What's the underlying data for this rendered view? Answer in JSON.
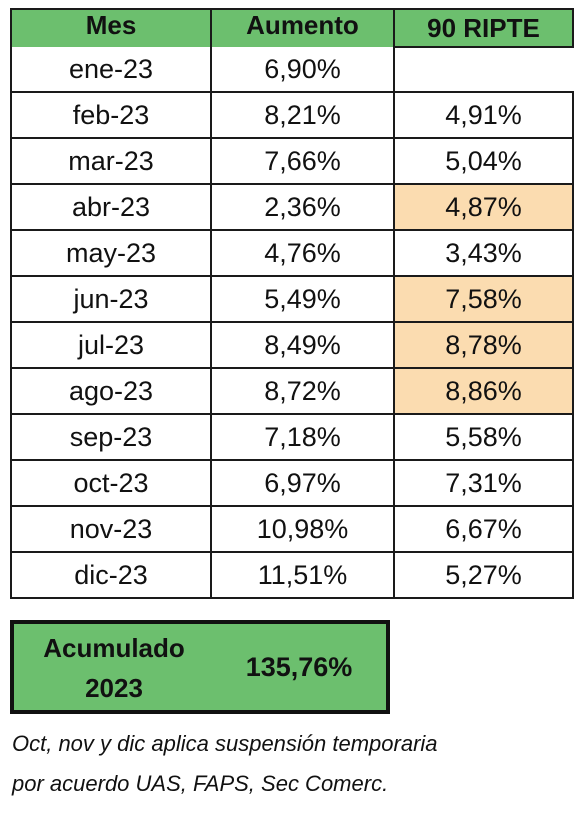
{
  "table": {
    "headers": {
      "mes": "Mes",
      "aumento": "Aumento",
      "ripte": "90 RIPTE"
    },
    "rows": [
      {
        "mes": "ene-23",
        "aumento": "6,90%",
        "ripte": "",
        "highlight": false
      },
      {
        "mes": "feb-23",
        "aumento": "8,21%",
        "ripte": "4,91%",
        "highlight": false
      },
      {
        "mes": "mar-23",
        "aumento": "7,66%",
        "ripte": "5,04%",
        "highlight": false
      },
      {
        "mes": "abr-23",
        "aumento": "2,36%",
        "ripte": "4,87%",
        "highlight": true
      },
      {
        "mes": "may-23",
        "aumento": "4,76%",
        "ripte": "3,43%",
        "highlight": false
      },
      {
        "mes": "jun-23",
        "aumento": "5,49%",
        "ripte": "7,58%",
        "highlight": true
      },
      {
        "mes": "jul-23",
        "aumento": "8,49%",
        "ripte": "8,78%",
        "highlight": true
      },
      {
        "mes": "ago-23",
        "aumento": "8,72%",
        "ripte": "8,86%",
        "highlight": true
      },
      {
        "mes": "sep-23",
        "aumento": "7,18%",
        "ripte": "5,58%",
        "highlight": false
      },
      {
        "mes": "oct-23",
        "aumento": "6,97%",
        "ripte": "7,31%",
        "highlight": false
      },
      {
        "mes": "nov-23",
        "aumento": "10,98%",
        "ripte": "6,67%",
        "highlight": false
      },
      {
        "mes": "dic-23",
        "aumento": "11,51%",
        "ripte": "5,27%",
        "highlight": false
      }
    ]
  },
  "total": {
    "label_line1": "Acumulado",
    "label_line2": "2023",
    "value": "135,76%"
  },
  "note": {
    "line1": "Oct, nov y dic aplica suspensión temporaria",
    "line2": "por acuerdo UAS, FAPS, Sec Comerc."
  },
  "colors": {
    "header_green": "#6cbf6e",
    "highlight_orange": "#fbdcb0"
  }
}
